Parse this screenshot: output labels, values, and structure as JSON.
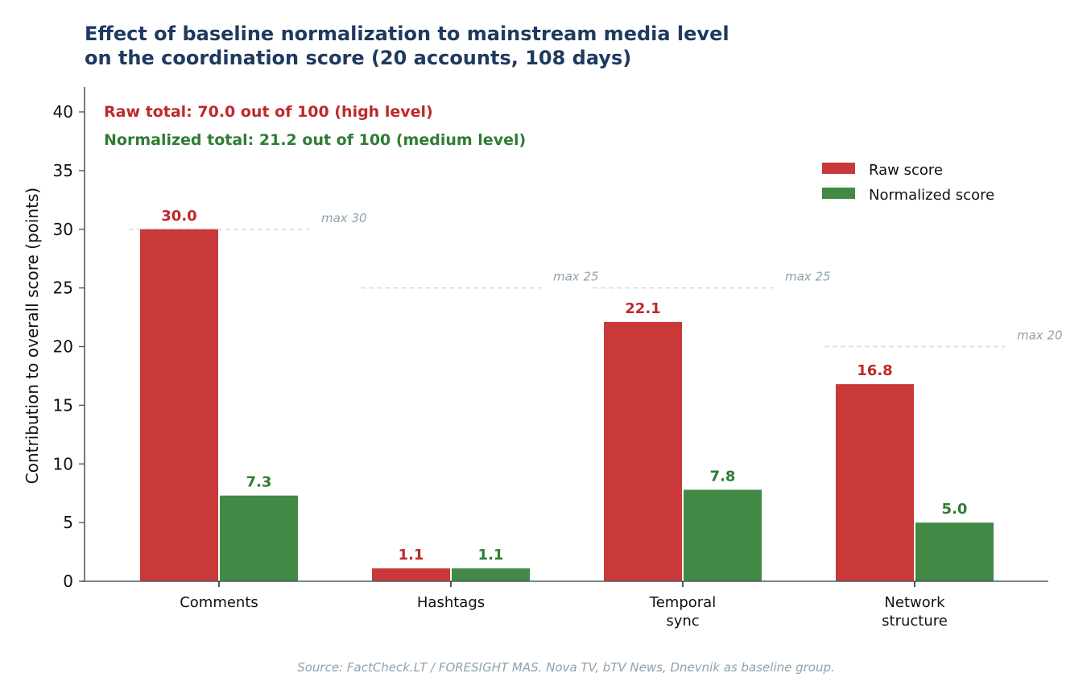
{
  "chart_data": {
    "type": "bar",
    "title_lines": [
      "Effect of baseline normalization to mainstream media level",
      "on the coordination score (20 accounts, 108 days)"
    ],
    "xlabel": "",
    "ylabel": "Contribution to overall score (points)",
    "ylim": [
      0,
      42
    ],
    "yticks": [
      0,
      5,
      10,
      15,
      20,
      25,
      30,
      35,
      40
    ],
    "grid": false,
    "categories": [
      [
        "Comments"
      ],
      [
        "Hashtags"
      ],
      [
        "Temporal",
        "sync"
      ],
      [
        "Network",
        "structure"
      ]
    ],
    "series": [
      {
        "name": "Raw score",
        "color": "#c9393a",
        "label_color": "#c0282b",
        "values": [
          30.0,
          1.1,
          22.1,
          16.8
        ],
        "labels": [
          "30.0",
          "1.1",
          "22.1",
          "16.8"
        ]
      },
      {
        "name": "Normalized score",
        "color": "#418944",
        "label_color": "#2e7d32",
        "values": [
          7.3,
          1.1,
          7.8,
          5.0
        ],
        "labels": [
          "7.3",
          "1.1",
          "7.8",
          "5.0"
        ]
      }
    ],
    "max_lines": [
      {
        "value": 30,
        "label": "max 30"
      },
      {
        "value": 25,
        "label": "max 25"
      },
      {
        "value": 25,
        "label": "max 25"
      },
      {
        "value": 20,
        "label": "max 20"
      }
    ],
    "annotations": [
      {
        "text": "Raw total: 70.0 out of 100  (high level)",
        "color": "#c0282b"
      },
      {
        "text": "Normalized total: 21.2 out of 100  (medium level)",
        "color": "#2e7d32"
      }
    ],
    "legend_position": "top-right",
    "source": "Source: FactCheck.LT / FORESIGHT MAS. Nova TV, bTV News, Dnevnik as baseline group.",
    "colors": {
      "title": "#1f3a5f",
      "axis": "#4f5b66",
      "max_line": "#d5dbe0",
      "muted_text": "#8fa1ae"
    }
  }
}
